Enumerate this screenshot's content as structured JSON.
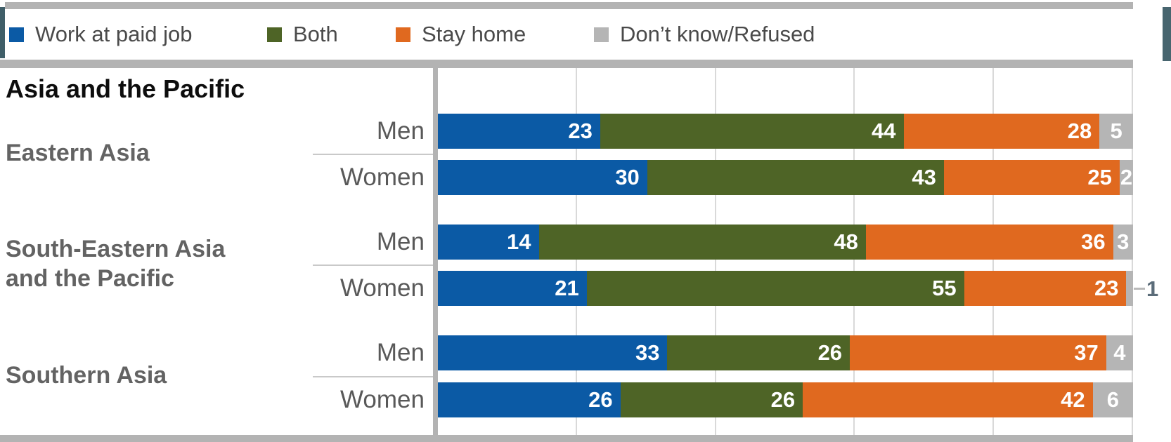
{
  "legend": {
    "items": [
      {
        "label": "Work at paid job",
        "color": "#0b5aa5"
      },
      {
        "label": "Both",
        "color": "#4e6426"
      },
      {
        "label": "Stay home",
        "color": "#e0691f"
      },
      {
        "label": "Don’t know/Refused",
        "color": "#b5b5b5"
      }
    ]
  },
  "section_title": "Asia and the Pacific",
  "decor": {
    "accent_teal_left": "#3f5e68",
    "accent_teal_right": "#47656f",
    "rule_gray": "#b3b3b3"
  },
  "chart_data": {
    "type": "bar",
    "orientation": "horizontal",
    "stacked": true,
    "unit": "percent",
    "xlim": [
      0,
      100
    ],
    "gridlines_percent": [
      20,
      40,
      60,
      80,
      100
    ],
    "grid": true,
    "legend_position": "top",
    "series_names": [
      "Work at paid job",
      "Both",
      "Stay home",
      "Don’t know/Refused"
    ],
    "groups": [
      {
        "label": "Eastern Asia",
        "label_lines": [
          "Eastern Asia"
        ],
        "rows": [
          {
            "label": "Men",
            "values": [
              23,
              44,
              28,
              5
            ]
          },
          {
            "label": "Women",
            "values": [
              30,
              43,
              25,
              2
            ]
          }
        ]
      },
      {
        "label": "South-Eastern Asia and the Pacific",
        "label_lines": [
          "South-Eastern Asia",
          "and the Pacific"
        ],
        "rows": [
          {
            "label": "Men",
            "values": [
              14,
              48,
              36,
              3
            ]
          },
          {
            "label": "Women",
            "values": [
              21,
              55,
              23,
              1
            ],
            "last_label_outside": true
          }
        ]
      },
      {
        "label": "Southern Asia",
        "label_lines": [
          "Southern Asia"
        ],
        "rows": [
          {
            "label": "Men",
            "values": [
              33,
              26,
              37,
              4
            ]
          },
          {
            "label": "Women",
            "values": [
              26,
              26,
              42,
              6
            ]
          }
        ]
      }
    ]
  }
}
